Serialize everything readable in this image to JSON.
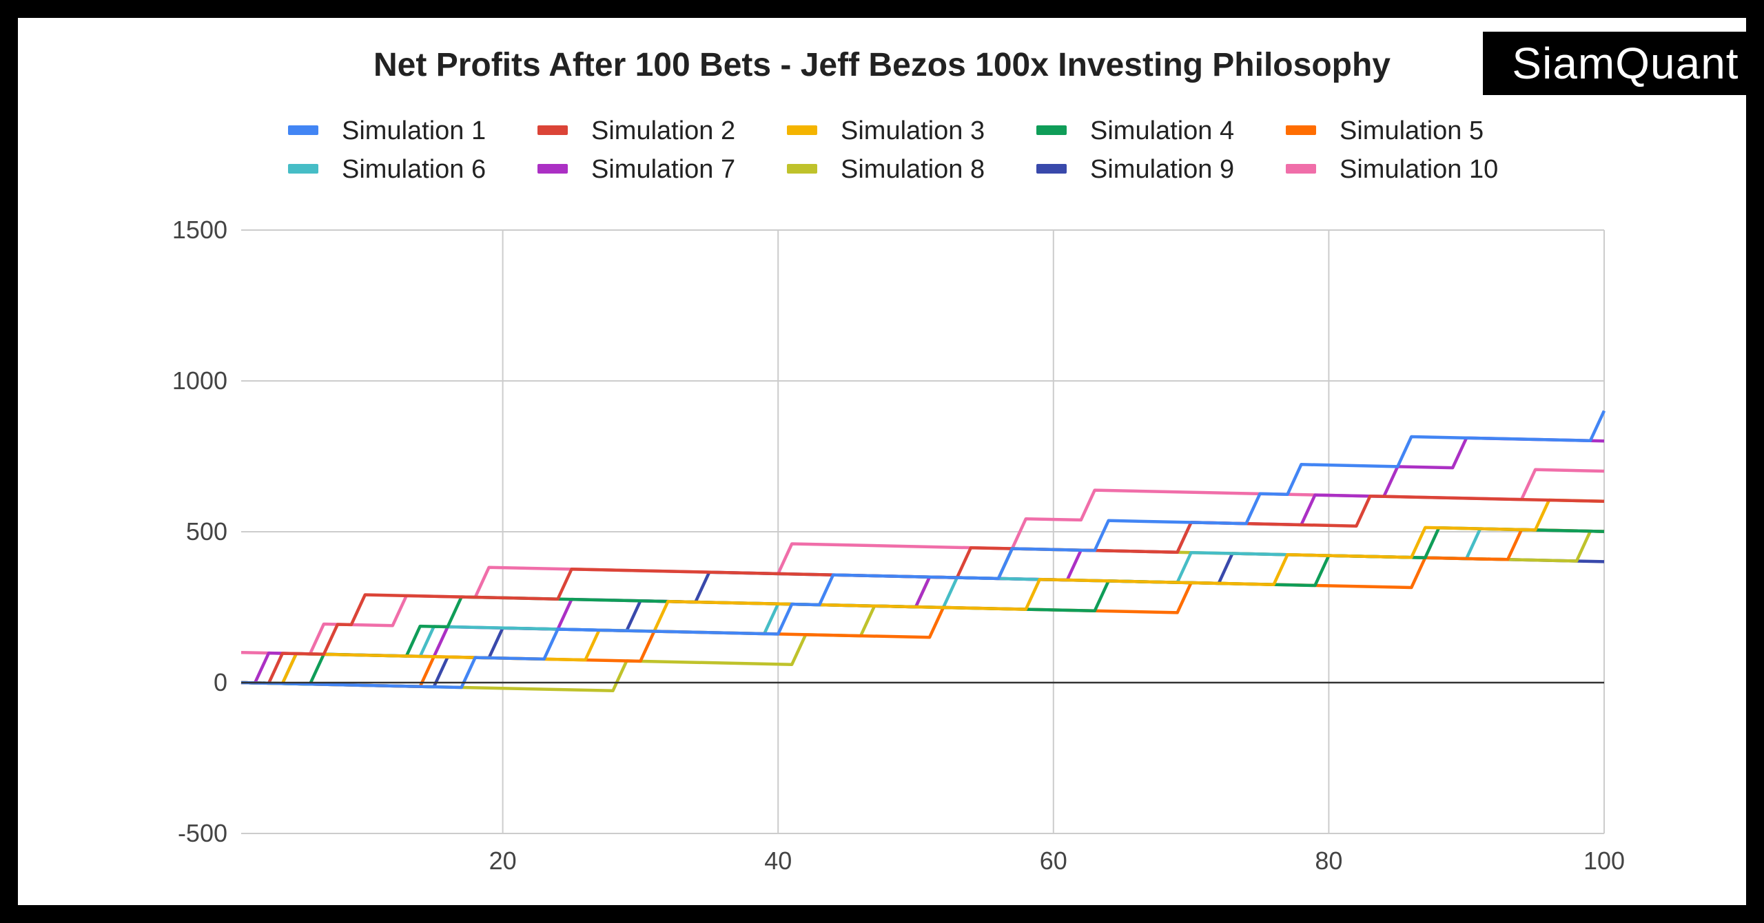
{
  "brand": {
    "name": "SiamQuant"
  },
  "chart_data": {
    "type": "line",
    "title": "Net Profits After 100 Bets - Jeff Bezos 100x Investing Philosophy",
    "xlabel": "",
    "ylabel": "",
    "xlim": [
      1,
      100
    ],
    "ylim": [
      -500,
      1500
    ],
    "x_ticks": [
      20,
      40,
      60,
      80,
      100
    ],
    "y_ticks": [
      -500,
      0,
      500,
      1000,
      1500
    ],
    "grid": true,
    "legend_position": "top",
    "series": [
      {
        "name": "Simulation 1",
        "color": "#4285f4",
        "start": 0,
        "jumps": [
          17,
          23,
          40,
          43,
          56,
          63,
          74,
          77,
          85,
          99
        ]
      },
      {
        "name": "Simulation 2",
        "color": "#db4437",
        "start": 0,
        "jumps": [
          3,
          7,
          9,
          24,
          53,
          69,
          82
        ]
      },
      {
        "name": "Simulation 3",
        "color": "#f4b400",
        "start": 0,
        "jumps": [
          4,
          26,
          31,
          58,
          76,
          86,
          95
        ]
      },
      {
        "name": "Simulation 4",
        "color": "#0f9d58",
        "start": 0,
        "jumps": [
          6,
          13,
          16,
          63,
          79,
          87
        ]
      },
      {
        "name": "Simulation 5",
        "color": "#ff6d01",
        "start": 0,
        "jumps": [
          14,
          30,
          51,
          69,
          86,
          93
        ]
      },
      {
        "name": "Simulation 6",
        "color": "#46bdc6",
        "start": 0,
        "jumps": [
          4,
          14,
          39,
          52,
          69,
          90
        ]
      },
      {
        "name": "Simulation 7",
        "color": "#ab30c4",
        "start": 0,
        "jumps": [
          2,
          15,
          24,
          50,
          61,
          69,
          78,
          84,
          89
        ]
      },
      {
        "name": "Simulation 8",
        "color": "#bfc22b",
        "start": 0,
        "jumps": [
          28,
          41,
          46,
          50,
          56,
          98
        ]
      },
      {
        "name": "Simulation 9",
        "color": "#3949ab",
        "start": 0,
        "jumps": [
          15,
          19,
          29,
          34,
          72
        ]
      },
      {
        "name": "Simulation 10",
        "color": "#f06ea9",
        "start": 100,
        "jumps": [
          6,
          12,
          18,
          40,
          57,
          62,
          94
        ]
      }
    ]
  }
}
